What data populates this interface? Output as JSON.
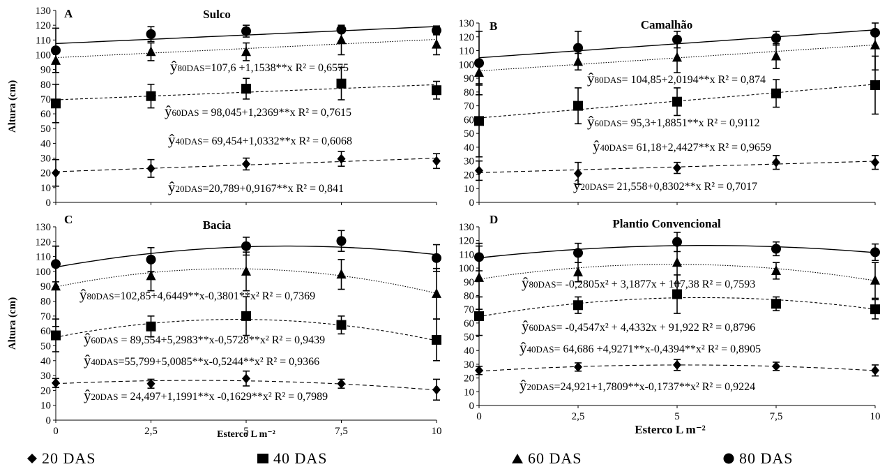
{
  "chart_data": [
    {
      "type": "scatter",
      "panel_letter": "A",
      "title": "Sulco",
      "ylabel": "Altura (cm)",
      "xlabel": "",
      "ylim": [
        0,
        130
      ],
      "yticks": [
        "0",
        "10",
        "20",
        "30",
        "40",
        "50",
        "60",
        "70",
        "80",
        "90",
        "100",
        "110",
        "120",
        "130"
      ],
      "xticks": [],
      "x": [
        0,
        2.5,
        5,
        7.5,
        10
      ],
      "series": [
        {
          "key": "s80",
          "values": [
            103,
            114,
            116,
            117,
            116.5
          ],
          "err": [
            15,
            5,
            4,
            2,
            3
          ],
          "fit": {
            "kind": "linear",
            "a": 107.6,
            "b": 1.1538,
            "c": 0
          }
        },
        {
          "key": "s60",
          "values": [
            96,
            102,
            102,
            110,
            107
          ],
          "err": [
            8,
            6,
            6,
            10,
            7
          ],
          "fit": {
            "kind": "linear",
            "a": 98.045,
            "b": 1.2369,
            "c": 0
          }
        },
        {
          "key": "s40",
          "values": [
            67,
            72,
            77,
            80.5,
            76
          ],
          "err": [
            13,
            8,
            7,
            11,
            6
          ],
          "fit": {
            "kind": "linear",
            "a": 69.454,
            "b": 1.0332,
            "c": 0
          }
        },
        {
          "key": "s20",
          "values": [
            20,
            23,
            26,
            29.5,
            28
          ],
          "err": [
            9,
            6,
            4,
            5,
            5
          ],
          "fit": {
            "kind": "linear",
            "a": 20.789,
            "b": 0.9167,
            "c": 0
          }
        }
      ],
      "equations": [
        {
          "main": "ŷ",
          "sub": "80DAS",
          "rest": "=107,6 +1,1538**x  R² = 0,6575"
        },
        {
          "main": "ŷ",
          "sub": "60DAS",
          "rest": " = 98,045+1,2369**x  R² = 0,7615"
        },
        {
          "main": "ŷ",
          "sub": "40DAS",
          "rest": "= 69,454+1,0332**x  R² = 0,6068"
        },
        {
          "main": "ŷ",
          "sub": "20DAS",
          "rest": "=20,789+0,9167**x  R² = 0,841"
        }
      ]
    },
    {
      "type": "scatter",
      "panel_letter": "B",
      "title": "Camalhão",
      "ylabel": "",
      "xlabel": "",
      "ylim": [
        0,
        130
      ],
      "yticks": [
        "0",
        "10",
        "20",
        "30",
        "40",
        "50",
        "60",
        "70",
        "80",
        "90",
        "100",
        "110",
        "120",
        "130"
      ],
      "xticks": [],
      "x": [
        0,
        2.5,
        5,
        7.5,
        10
      ],
      "series": [
        {
          "key": "s80",
          "values": [
            101,
            112,
            118,
            119,
            123
          ],
          "err": [
            23,
            12,
            6,
            5,
            2
          ],
          "fit": {
            "kind": "linear",
            "a": 104.85,
            "b": 2.0194,
            "c": 0
          }
        },
        {
          "key": "s60",
          "values": [
            94,
            102,
            105,
            106,
            114
          ],
          "err": [
            8,
            6,
            11,
            9,
            18
          ],
          "fit": {
            "kind": "linear",
            "a": 95.3,
            "b": 1.8851,
            "c": 0
          }
        },
        {
          "key": "s40",
          "values": [
            59,
            70,
            73,
            79,
            85
          ],
          "err": [
            26,
            13,
            10,
            10,
            21
          ],
          "fit": {
            "kind": "linear",
            "a": 61.18,
            "b": 2.4427,
            "c": 0
          }
        },
        {
          "key": "s20",
          "values": [
            23,
            21,
            25,
            29,
            29
          ],
          "err": [
            7,
            8,
            4,
            5,
            5
          ],
          "fit": {
            "kind": "linear",
            "a": 21.558,
            "b": 0.8302,
            "c": 0
          }
        }
      ],
      "equations": [
        {
          "main": "ŷ",
          "sub": "80DAS",
          "rest": "= 104,85+2,0194**x  R² = 0,874"
        },
        {
          "main": "ŷ",
          "sub": "60DAS",
          "rest": "= 95,3+1,8851**x  R² = 0,9112"
        },
        {
          "main": "ŷ",
          "sub": "40DAS",
          "rest": "= 61,18+2,4427**x  R² = 0,9659"
        },
        {
          "main": "ŷ",
          "sub": "20DAS",
          "rest": "= 21,558+0,8302**x   R² = 0,7017"
        }
      ]
    },
    {
      "type": "scatter",
      "panel_letter": "C",
      "title": "Bacia",
      "ylabel": "Altura (cm)",
      "xlabel": "Esterco L m⁻²",
      "ylim": [
        0,
        130
      ],
      "yticks": [
        "0",
        "10",
        "20",
        "30",
        "40",
        "50",
        "60",
        "70",
        "80",
        "90",
        "100",
        "110",
        "120",
        "130"
      ],
      "xticks": [
        "0",
        "2,5",
        "5",
        "7,5",
        "10"
      ],
      "x": [
        0,
        2.5,
        5,
        7.5,
        10
      ],
      "series": [
        {
          "key": "s80",
          "values": [
            105,
            108,
            117,
            120.5,
            109
          ],
          "err": [
            12,
            8,
            6,
            7,
            9
          ],
          "fit": {
            "kind": "quadratic",
            "a": 102.85,
            "b": 4.6449,
            "c": -0.3801
          }
        },
        {
          "key": "s60",
          "values": [
            90,
            97,
            100,
            98,
            85
          ],
          "err": [
            27,
            10,
            13,
            10,
            17
          ],
          "fit": {
            "kind": "quadratic",
            "a": 89.554,
            "b": 5.2983,
            "c": -0.5728
          }
        },
        {
          "key": "s40",
          "values": [
            57,
            63,
            70,
            64,
            54
          ],
          "err": [
            11,
            7,
            13,
            6,
            14
          ],
          "fit": {
            "kind": "quadratic",
            "a": 55.799,
            "b": 5.0085,
            "c": -0.5244
          }
        },
        {
          "key": "s20",
          "values": [
            25,
            24.5,
            28,
            24.5,
            20.5
          ],
          "err": [
            3,
            3,
            5,
            3,
            7
          ],
          "fit": {
            "kind": "quadratic",
            "a": 24.497,
            "b": 1.1991,
            "c": -0.1629
          }
        }
      ],
      "equations": [
        {
          "main": "ŷ",
          "sub": "80DAS",
          "rest": "=102,85+4,6449**x-0,3801**x²   R² = 0,7369"
        },
        {
          "main": "ŷ",
          "sub": "60DAS",
          "rest": " = 89,554+5,2983**x-0,5728**x²  R² = 0,9439"
        },
        {
          "main": "ŷ",
          "sub": "40DAS",
          "rest": "=55,799+5,0085**x-0,5244**x²   R² = 0,9366"
        },
        {
          "main": "ŷ",
          "sub": "20DAS",
          "rest": " = 24,497+1,1991**x -0,1629**x² R² = 0,7989"
        }
      ]
    },
    {
      "type": "scatter",
      "panel_letter": "D",
      "title": "Plantio Convencional",
      "ylabel": "",
      "xlabel": "Esterco L m⁻²",
      "ylim": [
        0,
        130
      ],
      "yticks": [
        "0",
        "10",
        "20",
        "30",
        "40",
        "50",
        "60",
        "70",
        "80",
        "90",
        "100",
        "110",
        "120",
        "130"
      ],
      "xticks": [
        "0",
        "2,5",
        "5",
        "7,5",
        "10"
      ],
      "x": [
        0,
        2.5,
        5,
        7.5,
        10
      ],
      "series": [
        {
          "key": "s80",
          "values": [
            108,
            111,
            119,
            114,
            111.5
          ],
          "err": [
            10,
            7,
            7,
            5,
            6
          ],
          "fit": {
            "kind": "quadratic",
            "a": 107.38,
            "b": 3.1877,
            "c": -0.2805
          }
        },
        {
          "key": "s60",
          "values": [
            93,
            97,
            104,
            98,
            91
          ],
          "err": [
            23,
            7,
            15,
            6,
            13
          ],
          "fit": {
            "kind": "quadratic",
            "a": 91.922,
            "b": 4.4332,
            "c": -0.4547
          }
        },
        {
          "key": "s40",
          "values": [
            65,
            73,
            81,
            74,
            70
          ],
          "err": [
            14,
            6,
            14,
            5,
            7
          ],
          "fit": {
            "kind": "quadratic",
            "a": 64.686,
            "b": 4.9271,
            "c": -0.4394
          }
        },
        {
          "key": "s20",
          "values": [
            25.5,
            28,
            29.5,
            28.5,
            25.5
          ],
          "err": [
            3,
            3,
            4,
            3,
            4
          ],
          "fit": {
            "kind": "quadratic",
            "a": 24.921,
            "b": 1.7809,
            "c": -0.1737
          }
        }
      ],
      "equations": [
        {
          "main": "ŷ",
          "sub": "80DAS",
          "rest": "= -0,2805x² + 3,1877x + 107,38  R² = 0,7593"
        },
        {
          "main": "ŷ",
          "sub": "60DAS",
          "rest": "= -0,4547x² + 4,4332x + 91,922  R² = 0,8796"
        },
        {
          "main": "ŷ",
          "sub": "40DAS",
          "rest": "= 64,686 +4,9271**x-0,4394**x²   R² = 0,8905"
        },
        {
          "main": "ŷ",
          "sub": "20DAS",
          "rest": "=24,921+1,7809**x-0,1737**x²  R² = 0,9224"
        }
      ]
    }
  ],
  "legend": [
    {
      "key": "s20",
      "marker": "diamond",
      "label": "20 DAS"
    },
    {
      "key": "s40",
      "marker": "square",
      "label": "40 DAS"
    },
    {
      "key": "s60",
      "marker": "triangle",
      "label": "60 DAS"
    },
    {
      "key": "s80",
      "marker": "circle",
      "label": "80 DAS"
    }
  ],
  "colors": {
    "ink": "#000000",
    "background": "#ffffff"
  }
}
